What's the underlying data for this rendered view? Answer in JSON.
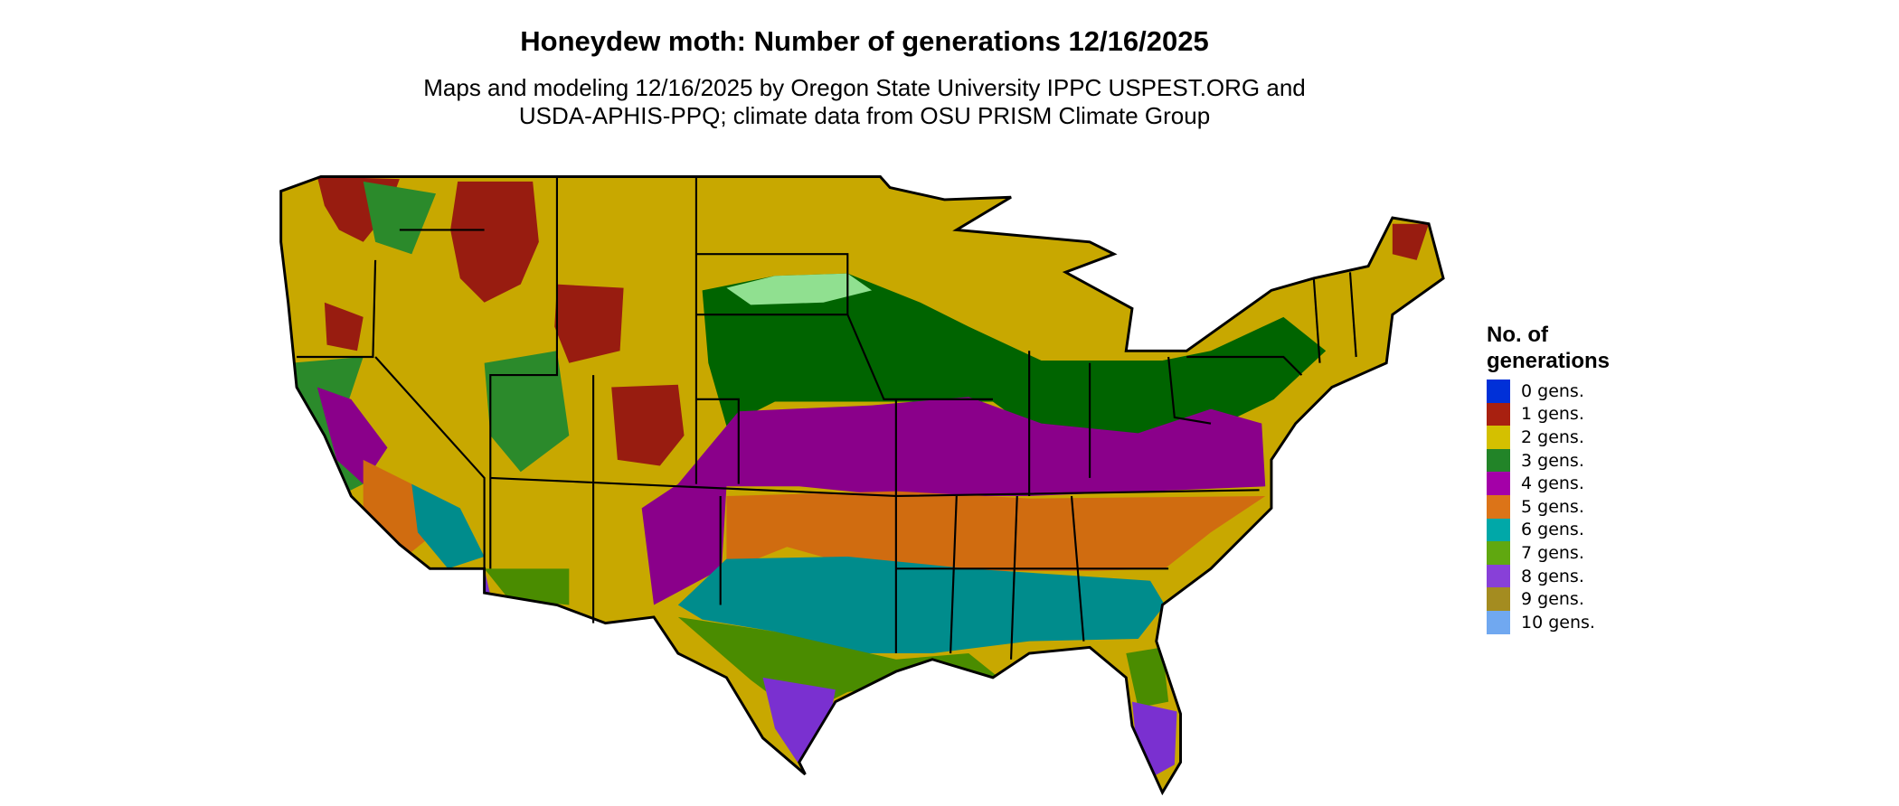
{
  "title": "Honeydew moth: Number of generations 12/16/2025",
  "subtitle": [
    "Maps and modeling 12/16/2025 by Oregon State University IPPC USPEST.ORG and",
    "USDA-APHIS-PPQ; climate data from OSU PRISM Climate Group"
  ],
  "legend": {
    "title": [
      "No. of",
      "generations"
    ],
    "items": [
      {
        "label": "0 gens.",
        "color": "#0030d8"
      },
      {
        "label": "1 gens.",
        "color": "#a82010"
      },
      {
        "label": "2 gens.",
        "color": "#d4c000"
      },
      {
        "label": "3 gens.",
        "color": "#228428"
      },
      {
        "label": "4 gens.",
        "color": "#a400a8"
      },
      {
        "label": "5 gens.",
        "color": "#dc7418"
      },
      {
        "label": "6 gens.",
        "color": "#00a8a8"
      },
      {
        "label": "7 gens.",
        "color": "#60a810"
      },
      {
        "label": "8 gens.",
        "color": "#8840d8"
      },
      {
        "label": "9 gens.",
        "color": "#a48c20"
      },
      {
        "label": "10 gens.",
        "color": "#70a8f0"
      }
    ]
  },
  "map_colors": {
    "base": "#c8a800",
    "boundary": "#000000",
    "midwest_green": "#006400",
    "light_green": "#90e090"
  }
}
